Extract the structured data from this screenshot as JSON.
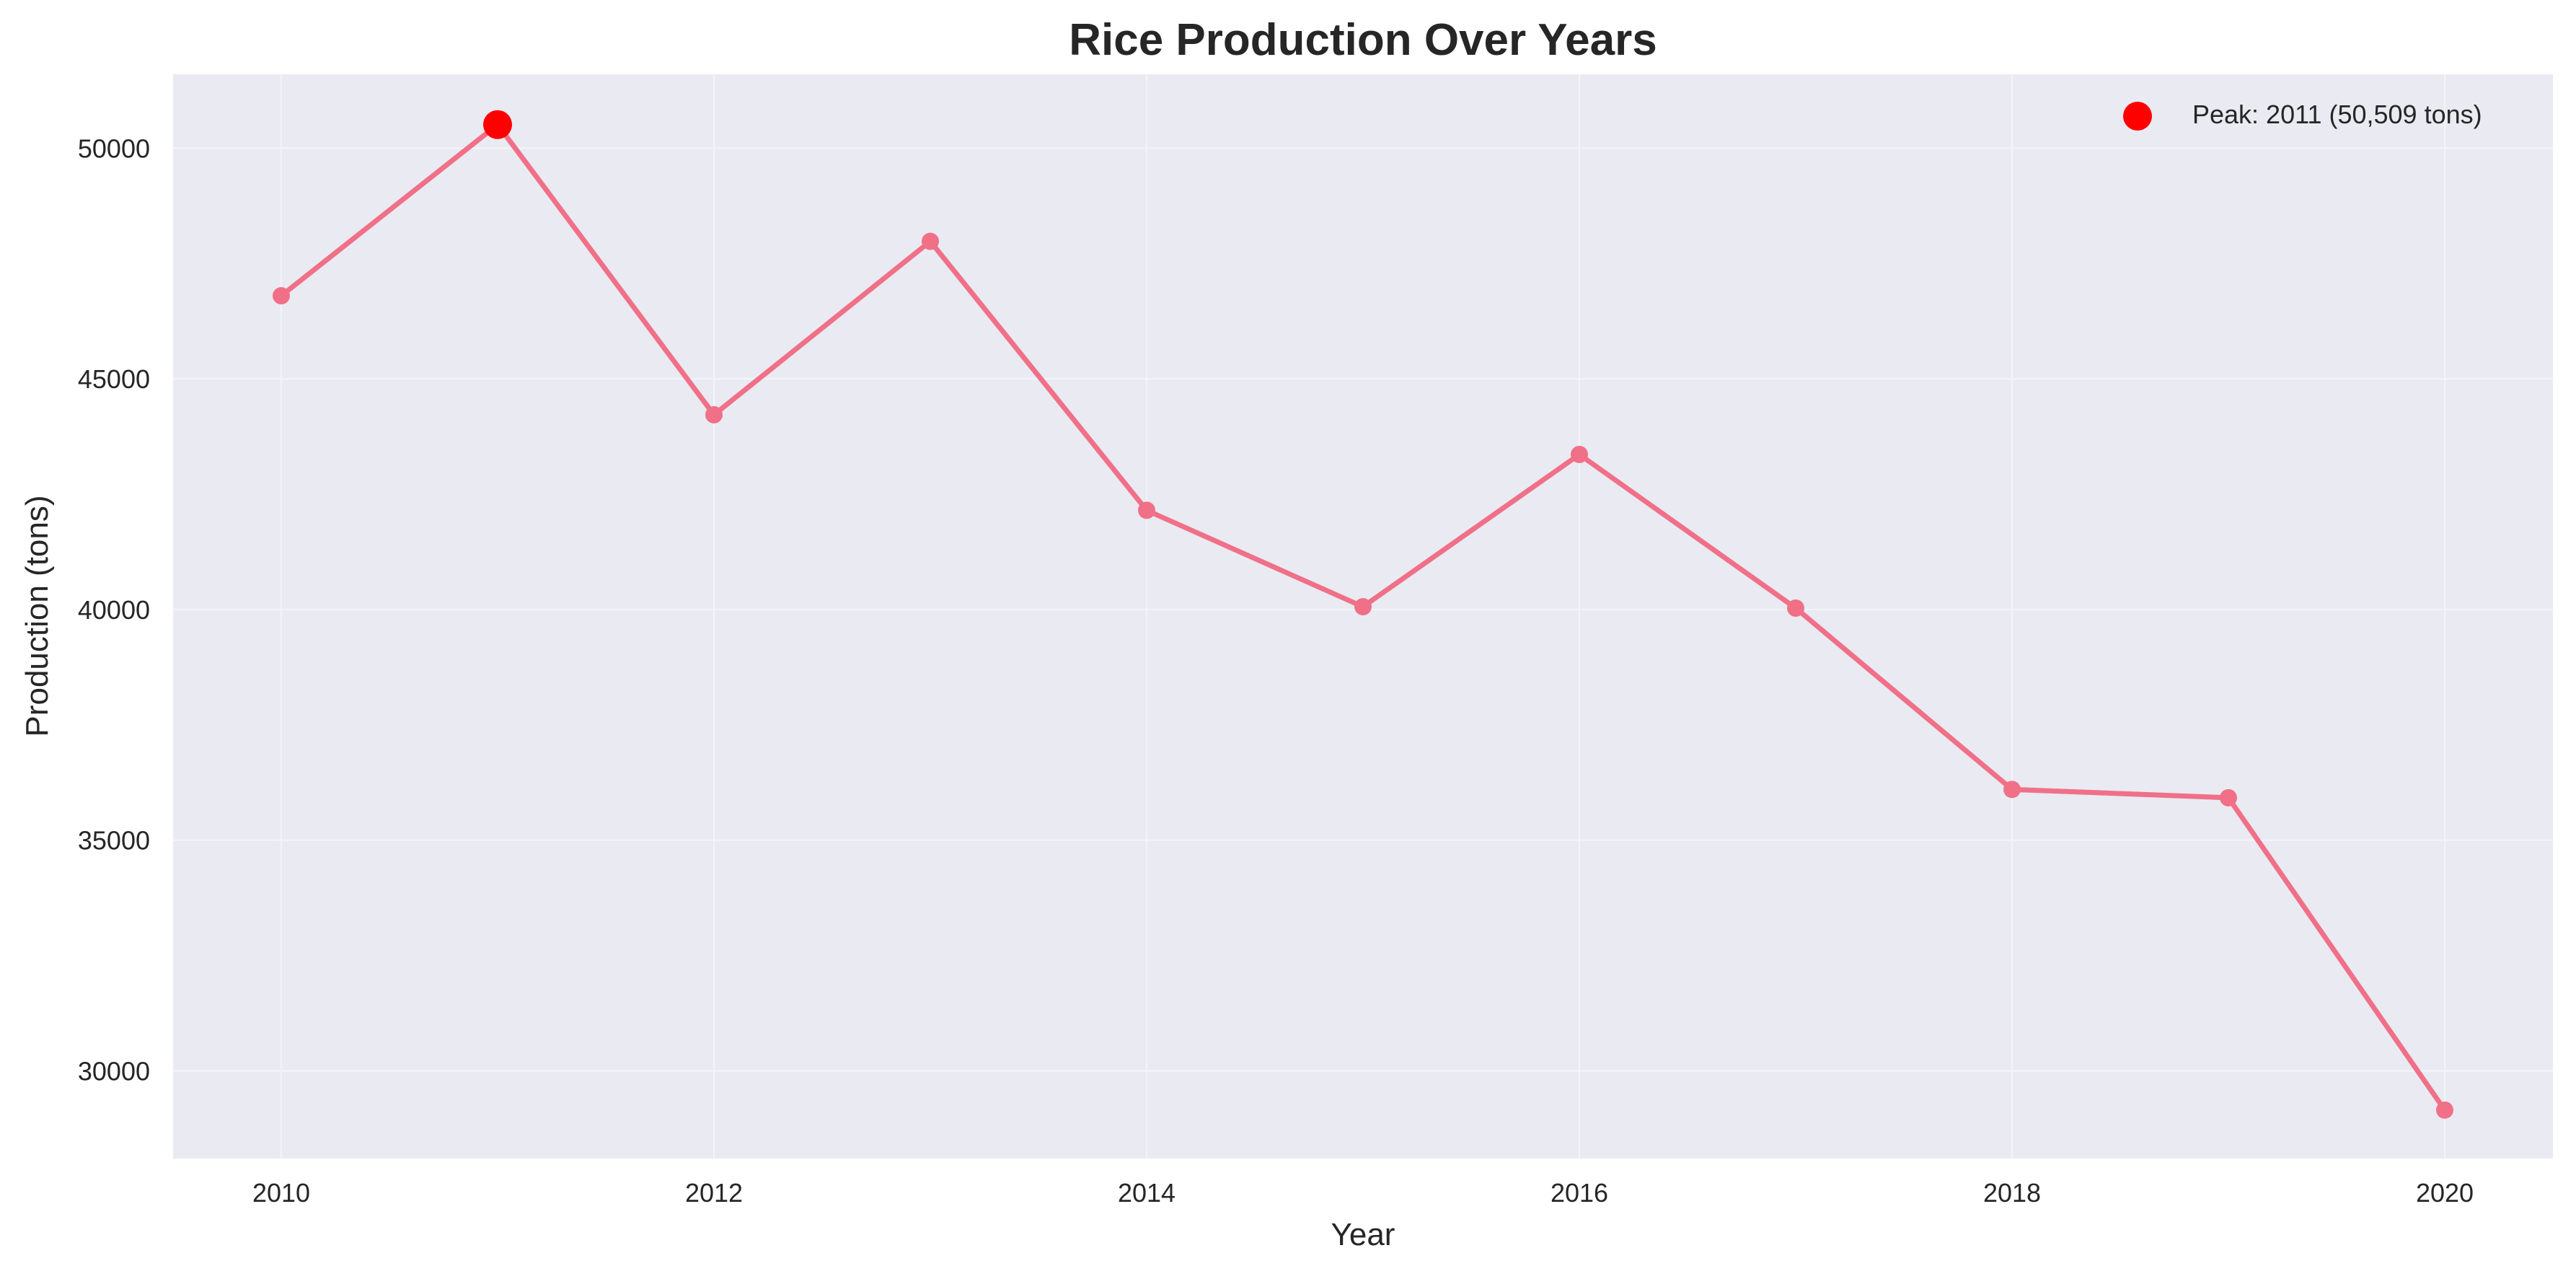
{
  "chart_data": {
    "type": "line",
    "title": "Rice Production Over Years",
    "xlabel": "Year",
    "ylabel": "Production (tons)",
    "x": [
      2010,
      2011,
      2012,
      2013,
      2014,
      2015,
      2016,
      2017,
      2018,
      2019,
      2020
    ],
    "series": [
      {
        "values": [
          46800,
          50509,
          44220,
          47980,
          42150,
          40060,
          43360,
          40030,
          36100,
          35920,
          29150
        ],
        "color": "#f07088"
      }
    ],
    "highlight": {
      "label": "Peak: 2011 (50,509 tons)",
      "x": 2011,
      "y": 50509,
      "color": "#ff0000"
    },
    "xticks": [
      "2010",
      "2012",
      "2014",
      "2016",
      "2018",
      "2020"
    ],
    "yticks": [
      "30000",
      "35000",
      "40000",
      "45000",
      "50000"
    ],
    "xlim": [
      2009.5,
      2020.5
    ],
    "ylim": [
      28100,
      51600
    ],
    "grid": true,
    "legend_position": "top-right",
    "background_color": "#eaeaf2",
    "grid_color": "#f4f4f8"
  }
}
